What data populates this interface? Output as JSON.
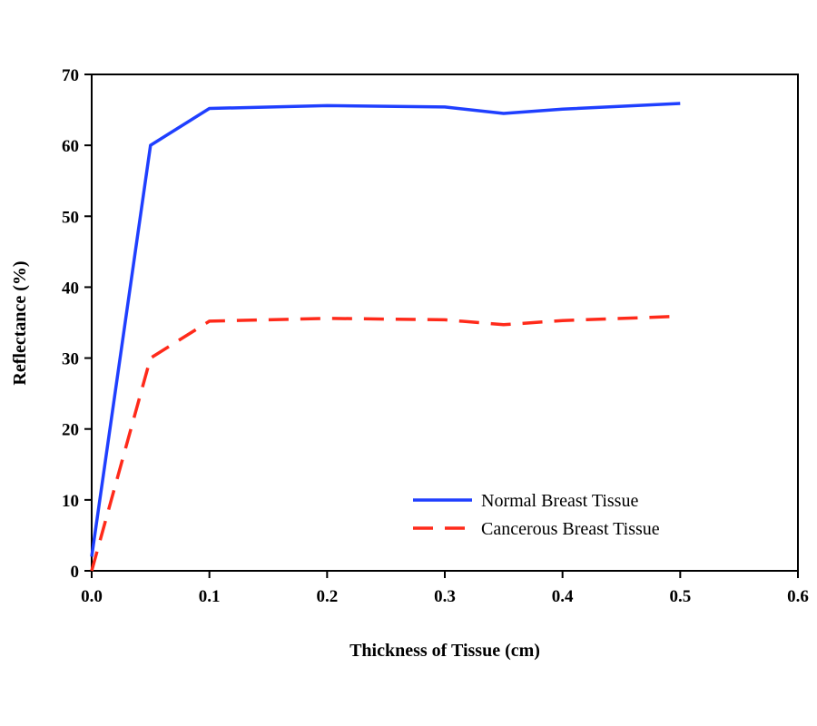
{
  "chart_data": {
    "type": "line",
    "title": "",
    "xlabel": "Thickness of Tissue (cm)",
    "ylabel": "Reflectance (%)",
    "xlim": [
      0,
      0.6
    ],
    "ylim": [
      0,
      70
    ],
    "x_ticks": [
      0.0,
      0.1,
      0.2,
      0.3,
      0.4,
      0.5,
      0.6
    ],
    "x_tick_labels": [
      "0.0",
      "0.1",
      "0.2",
      "0.3",
      "0.4",
      "0.5",
      "0.6"
    ],
    "y_ticks": [
      0,
      10,
      20,
      30,
      40,
      50,
      60,
      70
    ],
    "y_tick_labels": [
      "0",
      "10",
      "20",
      "30",
      "40",
      "50",
      "60",
      "70"
    ],
    "grid": false,
    "legend_position": "lower-right",
    "series": [
      {
        "name": "Normal Breast Tissue",
        "color": "#1f3fff",
        "line_style": "solid",
        "x": [
          0.0,
          0.05,
          0.1,
          0.2,
          0.3,
          0.35,
          0.4,
          0.5
        ],
        "y": [
          2,
          60,
          65.2,
          65.6,
          65.4,
          64.5,
          65.1,
          65.9
        ]
      },
      {
        "name": "Cancerous Breast Tissue",
        "color": "#ff2a1a",
        "line_style": "dashed",
        "x": [
          0.0,
          0.05,
          0.1,
          0.2,
          0.3,
          0.35,
          0.4,
          0.5
        ],
        "y": [
          0,
          30,
          35.2,
          35.6,
          35.4,
          34.7,
          35.3,
          35.9
        ]
      }
    ]
  }
}
